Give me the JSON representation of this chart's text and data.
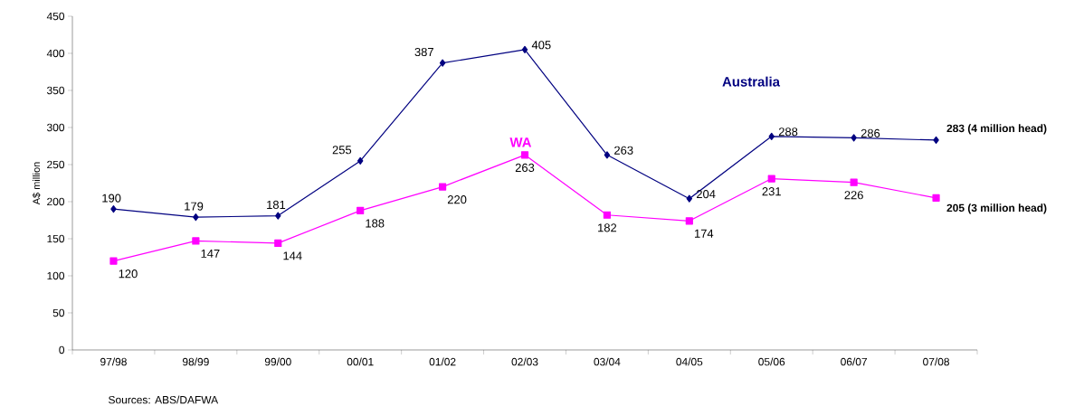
{
  "chart_data": {
    "type": "line",
    "ylabel": "A$ million",
    "categories": [
      "97/98",
      "98/99",
      "99/00",
      "00/01",
      "01/02",
      "02/03",
      "03/04",
      "04/05",
      "05/06",
      "06/07",
      "07/08"
    ],
    "series": [
      {
        "name": "Australia",
        "color": "#000080",
        "marker": "diamond",
        "values": [
          190,
          179,
          181,
          255,
          387,
          405,
          263,
          204,
          288,
          286,
          283
        ],
        "value_labels": [
          "190",
          "179",
          "181",
          "255",
          "387",
          "405",
          "263",
          "204",
          "288",
          "286",
          "283 (4 million head)"
        ]
      },
      {
        "name": "WA",
        "color": "#ff00ff",
        "marker": "square",
        "values": [
          120,
          147,
          144,
          188,
          220,
          263,
          182,
          174,
          231,
          226,
          205
        ],
        "value_labels": [
          "120",
          "147",
          "144",
          "188",
          "220",
          "263",
          "182",
          "174",
          "231",
          "226",
          "205 (3 million head)"
        ]
      }
    ],
    "ylim": [
      0,
      450
    ],
    "yticks": [
      0,
      50,
      100,
      150,
      200,
      250,
      300,
      350,
      400,
      450
    ],
    "grid": false,
    "line_style": "solid",
    "annotations": [
      "Sources: ABS/DAFWA"
    ]
  }
}
